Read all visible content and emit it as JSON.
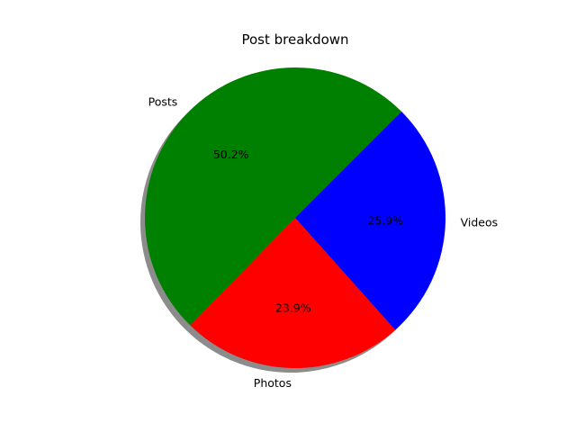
{
  "chart_data": {
    "type": "pie",
    "title": "Post breakdown",
    "slices": [
      {
        "label": "Posts",
        "value": 50.2,
        "pct_label": "50.2%",
        "color": "#008000"
      },
      {
        "label": "Photos",
        "value": 23.9,
        "pct_label": "23.9%",
        "color": "#ff0000"
      },
      {
        "label": "Videos",
        "value": 25.9,
        "pct_label": "25.9%",
        "color": "#0000ff"
      }
    ],
    "shadow": true,
    "start_angle_deg": 45
  }
}
